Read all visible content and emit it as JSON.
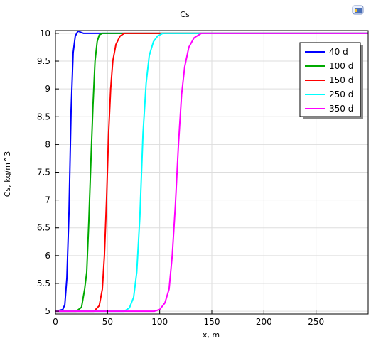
{
  "chart_data": {
    "type": "line",
    "title": "Cs",
    "xlabel": "x, m",
    "ylabel": "Cs, kg/m^3",
    "xlim": [
      0,
      300
    ],
    "ylim": [
      4.95,
      10.05
    ],
    "x_ticks": [
      0,
      50,
      100,
      150,
      200,
      250
    ],
    "x_tick_labels": [
      "0",
      "50",
      "100",
      "150",
      "200",
      "250"
    ],
    "y_ticks": [
      5,
      5.5,
      6,
      6.5,
      7,
      7.5,
      8,
      8.5,
      9,
      9.5,
      10
    ],
    "y_tick_labels": [
      "5",
      "5.5",
      "6",
      "6.5",
      "7",
      "7.5",
      "8",
      "8.5",
      "9",
      "9.5",
      "10"
    ],
    "grid": true,
    "legend_position": "top-right",
    "series": [
      {
        "name": "40 d",
        "color": "#0000ff",
        "x": [
          0,
          7,
          9,
          11,
          13,
          15,
          17,
          19,
          21,
          22,
          24,
          27,
          29,
          300
        ],
        "y": [
          5.0,
          5.03,
          5.12,
          5.6,
          6.8,
          8.6,
          9.65,
          9.95,
          10.02,
          10.04,
          10.02,
          10.0,
          10.0,
          10.0
        ]
      },
      {
        "name": "100 d",
        "color": "#00aa00",
        "x": [
          0,
          20,
          25,
          28,
          30,
          32,
          34,
          36,
          38,
          40,
          42,
          45,
          300
        ],
        "y": [
          5.0,
          5.0,
          5.07,
          5.4,
          5.7,
          6.6,
          7.7,
          8.7,
          9.5,
          9.85,
          9.97,
          10.0,
          10.0
        ]
      },
      {
        "name": "150 d",
        "color": "#ff0000",
        "x": [
          0,
          37,
          42,
          45,
          47,
          49,
          51,
          53,
          55,
          58,
          62,
          66,
          300
        ],
        "y": [
          5.0,
          5.0,
          5.1,
          5.4,
          6.0,
          7.0,
          8.2,
          9.0,
          9.5,
          9.8,
          9.95,
          10.0,
          10.0
        ]
      },
      {
        "name": "250 d",
        "color": "#00ffff",
        "x": [
          0,
          66,
          71,
          75,
          78,
          81,
          84,
          87,
          90,
          94,
          98,
          103,
          300
        ],
        "y": [
          5.0,
          5.0,
          5.06,
          5.25,
          5.7,
          6.7,
          8.2,
          9.1,
          9.6,
          9.85,
          9.95,
          10.0,
          10.0
        ]
      },
      {
        "name": "350 d",
        "color": "#ff00ff",
        "x": [
          0,
          95,
          100,
          105,
          109,
          112,
          115,
          118,
          121,
          124,
          128,
          133,
          140,
          300
        ],
        "y": [
          5.0,
          5.0,
          5.03,
          5.15,
          5.4,
          6.0,
          6.9,
          8.0,
          8.9,
          9.4,
          9.75,
          9.92,
          10.0,
          10.0
        ]
      }
    ]
  }
}
